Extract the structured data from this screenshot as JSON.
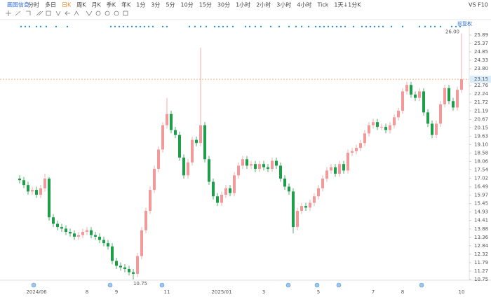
{
  "toolbar": {
    "title": "画图信息",
    "items": [
      "分时",
      "多日",
      "日K",
      "周K",
      "月K",
      "季K",
      "年K",
      "1分",
      "3分",
      "5分",
      "10分",
      "15分",
      "30分",
      "1小时",
      "2小时",
      "3小时",
      "4小时",
      "Tick",
      "1天↓1分K"
    ],
    "active": "日K",
    "right": "VS F10"
  },
  "chart_data": {
    "type": "candlestick",
    "adjust_label": "前复权",
    "categories": [
      null,
      null,
      null,
      null,
      "2024/06",
      null,
      null,
      null,
      null,
      null,
      null,
      null,
      null,
      null,
      null,
      null,
      "8",
      null,
      null,
      null,
      null,
      null,
      null,
      "9",
      null,
      null,
      null,
      null,
      null,
      null,
      null,
      null,
      null,
      null,
      null,
      "11",
      null,
      null,
      null,
      null,
      null,
      null,
      null,
      null,
      null,
      null,
      null,
      null,
      "2025/01",
      null,
      null,
      null,
      null,
      null,
      null,
      null,
      null,
      null,
      "3",
      null,
      null,
      null,
      null,
      null,
      null,
      null,
      null,
      null,
      null,
      null,
      null,
      "5",
      null,
      null,
      null,
      null,
      null,
      null,
      null,
      null,
      null,
      null,
      null,
      null,
      "7",
      null,
      null,
      null,
      null,
      null,
      null,
      "8",
      null,
      null,
      null,
      null,
      null,
      null,
      null,
      null,
      null,
      null,
      null,
      null,
      null,
      "10"
    ],
    "open": [
      17.0,
      16.9,
      16.6,
      16.2,
      16.3,
      16.0,
      16.4,
      17.0,
      14.6,
      14.2,
      14.0,
      13.9,
      13.7,
      13.6,
      13.4,
      13.5,
      13.7,
      13.8,
      13.5,
      13.4,
      13.2,
      13.0,
      12.8,
      11.9,
      11.6,
      11.5,
      11.4,
      11.2,
      11.1,
      12.2,
      13.8,
      15.0,
      16.3,
      17.6,
      18.8,
      20.3,
      21.0,
      20.0,
      19.7,
      18.3,
      17.2,
      18.0,
      19.4,
      19.2,
      20.3,
      18.2,
      16.8,
      15.9,
      15.5,
      16.0,
      16.4,
      16.1,
      17.2,
      17.8,
      18.2,
      17.8,
      17.9,
      17.6,
      17.9,
      17.7,
      17.6,
      18.1,
      17.8,
      17.0,
      16.5,
      16.2,
      14.0,
      15.0,
      15.3,
      15.2,
      15.5,
      15.9,
      16.4,
      17.0,
      17.5,
      17.7,
      17.3,
      17.9,
      17.5,
      18.6,
      18.7,
      18.9,
      19.2,
      19.8,
      20.3,
      20.5,
      20.2,
      20.2,
      20.0,
      20.3,
      20.8,
      21.2,
      22.4,
      22.8,
      22.2,
      22.0,
      22.4,
      21.1,
      20.4,
      19.7,
      20.4,
      21.6,
      22.6,
      21.8,
      21.4,
      22.5
    ],
    "high": [
      17.2,
      17.1,
      16.8,
      16.5,
      16.5,
      16.6,
      17.3,
      17.1,
      14.8,
      14.4,
      14.2,
      14.1,
      13.9,
      13.8,
      13.7,
      13.9,
      14.0,
      14.0,
      13.7,
      13.6,
      13.4,
      13.2,
      13.0,
      12.1,
      11.8,
      11.7,
      11.6,
      11.4,
      12.4,
      14.0,
      15.2,
      16.5,
      17.8,
      19.0,
      20.5,
      22.0,
      21.2,
      20.2,
      19.9,
      18.5,
      18.2,
      19.6,
      19.6,
      25.1,
      20.5,
      18.4,
      17.0,
      16.1,
      16.2,
      16.6,
      16.6,
      17.4,
      18.0,
      18.4,
      18.4,
      18.1,
      18.1,
      18.1,
      18.1,
      17.9,
      18.3,
      18.3,
      18.0,
      17.2,
      16.7,
      16.4,
      15.2,
      15.5,
      15.5,
      15.7,
      16.1,
      16.6,
      17.2,
      17.7,
      17.9,
      17.9,
      18.1,
      18.1,
      18.8,
      18.9,
      19.1,
      19.4,
      20.0,
      20.5,
      20.7,
      20.7,
      20.4,
      20.4,
      20.5,
      21.0,
      21.4,
      22.6,
      23.0,
      23.0,
      22.4,
      22.6,
      22.6,
      21.3,
      20.6,
      20.6,
      21.8,
      22.8,
      22.8,
      22.0,
      22.7,
      26.0
    ],
    "low": [
      16.7,
      16.4,
      16.0,
      16.0,
      15.8,
      15.8,
      16.2,
      14.4,
      14.0,
      13.8,
      13.7,
      13.5,
      13.4,
      13.2,
      13.2,
      13.3,
      13.5,
      13.3,
      13.2,
      13.0,
      12.8,
      12.6,
      11.7,
      11.4,
      11.3,
      11.2,
      11.0,
      10.75,
      10.9,
      12.0,
      13.6,
      14.8,
      16.1,
      17.4,
      18.6,
      20.1,
      19.8,
      19.5,
      18.1,
      17.0,
      17.0,
      17.8,
      19.0,
      19.0,
      18.0,
      16.6,
      15.7,
      15.3,
      15.3,
      15.8,
      15.9,
      15.9,
      17.0,
      17.6,
      17.6,
      17.6,
      17.4,
      17.4,
      17.5,
      17.4,
      17.4,
      17.6,
      16.8,
      16.3,
      16.0,
      13.6,
      13.8,
      14.8,
      15.0,
      15.0,
      15.3,
      15.7,
      16.2,
      16.8,
      17.3,
      17.1,
      17.1,
      17.3,
      17.3,
      18.4,
      18.5,
      18.7,
      19.0,
      19.6,
      20.1,
      20.0,
      20.0,
      19.8,
      19.8,
      20.1,
      20.6,
      21.0,
      22.2,
      22.0,
      21.8,
      21.8,
      20.9,
      20.2,
      19.5,
      19.5,
      20.2,
      21.4,
      21.6,
      21.2,
      21.2,
      22.3
    ],
    "close": [
      16.9,
      16.6,
      16.2,
      16.3,
      16.0,
      16.4,
      17.0,
      14.6,
      14.2,
      14.0,
      13.9,
      13.7,
      13.6,
      13.4,
      13.5,
      13.7,
      13.8,
      13.5,
      13.4,
      13.2,
      13.0,
      12.8,
      11.9,
      11.6,
      11.5,
      11.4,
      11.2,
      11.1,
      12.2,
      13.8,
      15.0,
      16.3,
      17.6,
      18.8,
      20.3,
      21.0,
      20.0,
      19.7,
      18.3,
      17.2,
      18.0,
      19.4,
      19.2,
      20.3,
      18.2,
      16.8,
      15.9,
      15.5,
      16.0,
      16.4,
      16.1,
      17.2,
      17.8,
      18.2,
      17.8,
      17.9,
      17.6,
      17.9,
      17.7,
      17.6,
      18.1,
      17.8,
      17.0,
      16.5,
      16.2,
      14.0,
      15.0,
      15.3,
      15.2,
      15.5,
      15.9,
      16.4,
      17.0,
      17.5,
      17.7,
      17.3,
      17.9,
      17.5,
      18.6,
      18.7,
      18.9,
      19.2,
      19.8,
      20.3,
      20.5,
      20.2,
      20.2,
      20.0,
      20.3,
      20.8,
      21.2,
      22.4,
      22.8,
      22.2,
      22.0,
      22.4,
      21.1,
      20.4,
      19.7,
      20.4,
      21.6,
      22.6,
      21.8,
      21.4,
      22.5,
      23.15
    ],
    "up_color": "#f29a9a",
    "down_color": "#1f9e4a",
    "ylim": [
      10.75,
      25.89
    ],
    "yticks": [
      {
        "value": 25.89,
        "label": "25.89"
      },
      {
        "value": 25.37,
        "label": "25.37"
      },
      {
        "value": 24.85,
        "label": "24.85"
      },
      {
        "value": 24.33,
        "label": "24.33"
      },
      {
        "value": 23.8,
        "label": "23.80"
      },
      {
        "value": 22.76,
        "label": "22.76"
      },
      {
        "value": 22.24,
        "label": "22.24"
      },
      {
        "value": 21.72,
        "label": "21.72"
      },
      {
        "value": 21.19,
        "label": "21.19"
      },
      {
        "value": 20.67,
        "label": "20.67"
      },
      {
        "value": 20.15,
        "label": "20.15"
      },
      {
        "value": 19.63,
        "label": "19.63"
      },
      {
        "value": 19.1,
        "label": "19.10"
      },
      {
        "value": 18.58,
        "label": "18.58"
      },
      {
        "value": 18.06,
        "label": "18.06"
      },
      {
        "value": 17.54,
        "label": "17.54"
      },
      {
        "value": 17.02,
        "label": "17.02"
      },
      {
        "value": 16.49,
        "label": "16.49"
      },
      {
        "value": 15.97,
        "label": "15.97"
      },
      {
        "value": 15.45,
        "label": "15.45"
      },
      {
        "value": 14.93,
        "label": "14.93"
      },
      {
        "value": 14.41,
        "label": "14.41"
      },
      {
        "value": 13.88,
        "label": "13.88"
      },
      {
        "value": 13.36,
        "label": "13.36"
      },
      {
        "value": 12.84,
        "label": "12.84"
      },
      {
        "value": 12.32,
        "label": "12.32"
      },
      {
        "value": 11.79,
        "label": "11.79"
      },
      {
        "value": 11.27,
        "label": "11.27"
      },
      {
        "value": 10.75,
        "label": "10.75"
      }
    ],
    "last_price": 23.15,
    "max_label": {
      "value": 26.0,
      "label": "26.00"
    },
    "min_label": {
      "value": 10.75,
      "label": "10.75"
    }
  }
}
